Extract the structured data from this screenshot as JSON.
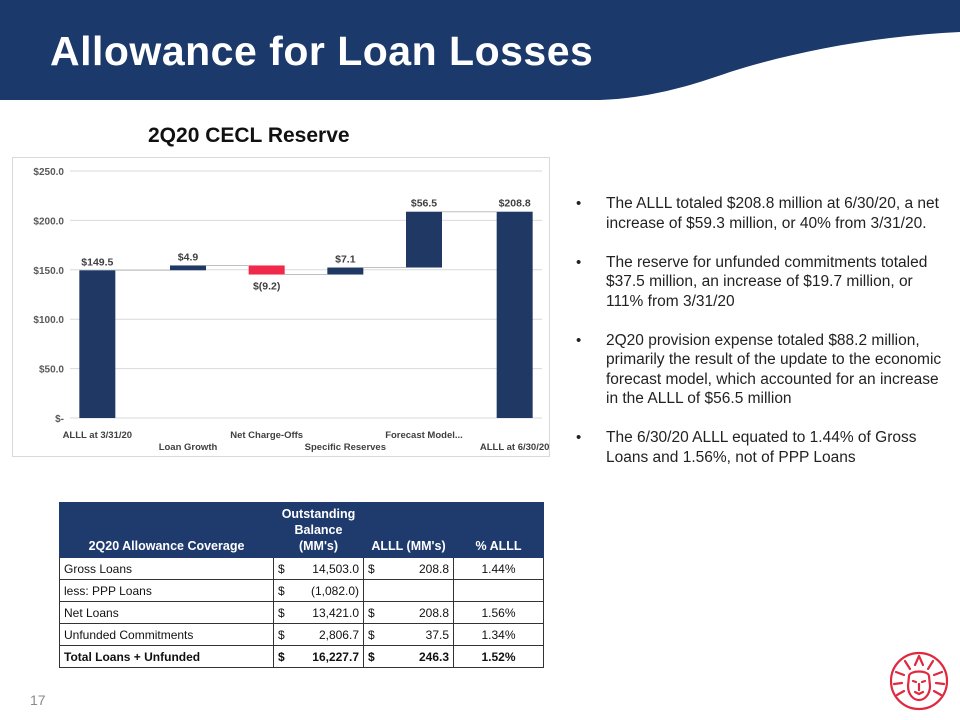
{
  "slide": {
    "title": "Allowance for Loan Losses",
    "page_number": "17"
  },
  "chart_title": "2Q20 CECL Reserve",
  "chart_data": {
    "type": "bar",
    "subtype": "waterfall",
    "categories": [
      "ALLL at 3/31/20",
      "Loan Growth",
      "Net Charge-Offs",
      "Specific Reserves",
      "Forecast Model...",
      "ALLL at 6/30/20"
    ],
    "values": [
      149.5,
      4.9,
      -9.2,
      7.1,
      56.5,
      208.8
    ],
    "data_labels": [
      "$149.5",
      "$4.9",
      "$(9.2)",
      "$7.1",
      "$56.5",
      "$208.8"
    ],
    "y_ticks": [
      "$-",
      "$50.0",
      "$100.0",
      "$150.0",
      "$200.0",
      "$250.0"
    ],
    "ylim": [
      0,
      250
    ],
    "grid": true,
    "colors": {
      "total": "#1f3864",
      "increase": "#1f3864",
      "decrease": "#f0294a"
    }
  },
  "bullets": [
    "The ALLL totaled $208.8 million at 6/30/20, a net increase of $59.3 million, or 40% from 3/31/20.",
    "The reserve for unfunded  commitments totaled $37.5 million, an increase of $19.7 million, or 111% from 3/31/20",
    "2Q20 provision expense totaled $88.2 million, primarily the result of the update to the economic forecast model, which accounted for an increase in the ALLL of $56.5 million",
    "The 6/30/20 ALLL equated to 1.44% of Gross Loans and 1.56%, not of PPP Loans"
  ],
  "table": {
    "headers": [
      "2Q20 Allowance Coverage",
      "Outstanding Balance (MM's)",
      "ALLL (MM's)",
      "% ALLL"
    ],
    "rows": [
      {
        "label": "Gross Loans",
        "balance": [
          "$",
          "14,503.0"
        ],
        "alll": [
          "$",
          "208.8"
        ],
        "pct": "1.44%"
      },
      {
        "label": "less: PPP Loans",
        "balance": [
          "$",
          "(1,082.0)"
        ],
        "alll": [
          "",
          ""
        ],
        "pct": ""
      },
      {
        "label": "Net Loans",
        "balance": [
          "$",
          "13,421.0"
        ],
        "alll": [
          "$",
          "208.8"
        ],
        "pct": "1.56%"
      },
      {
        "label": "Unfunded Commitments",
        "balance": [
          "$",
          "2,806.7"
        ],
        "alll": [
          "$",
          "37.5"
        ],
        "pct": "1.34%"
      },
      {
        "label": "Total Loans + Unfunded",
        "balance": [
          "$",
          "16,227.7"
        ],
        "alll": [
          "$",
          "246.3"
        ],
        "pct": "1.52%"
      }
    ]
  },
  "colors": {
    "header_navy": "#1b3a6b",
    "table_header": "#1f3b6e",
    "logo_red": "#e0283e"
  },
  "logo": {
    "icon": "lion-head-icon"
  }
}
